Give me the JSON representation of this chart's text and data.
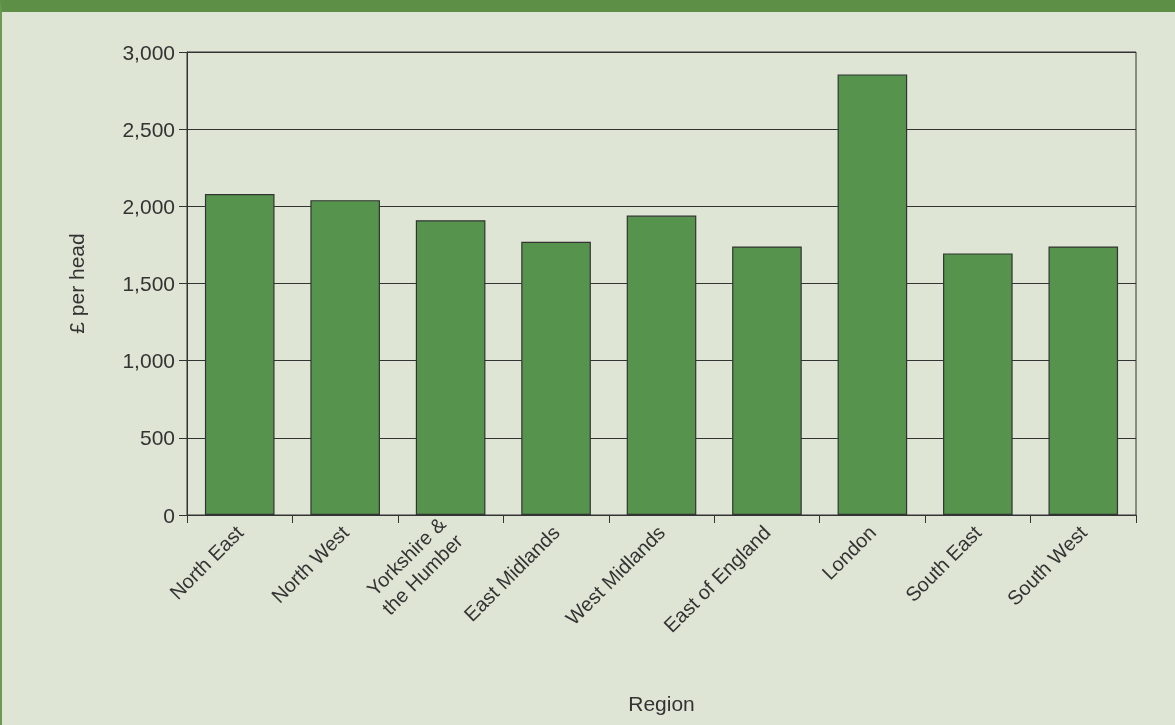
{
  "chart_data": {
    "type": "bar",
    "xlabel": "Region",
    "ylabel": "£ per head",
    "categories": [
      "North East",
      "North West",
      "Yorkshire &\nthe Humber",
      "East Midlands",
      "West Midlands",
      "East of England",
      "London",
      "South East",
      "South West"
    ],
    "values": [
      2080,
      2040,
      1910,
      1770,
      1940,
      1740,
      2855,
      1695,
      1740
    ],
    "color": "#56944e",
    "ylim": [
      0,
      3000
    ],
    "yticks": [
      0,
      {
        "value": 500,
        "label": "500"
      },
      {
        "value": 1000,
        "label": "1,000"
      },
      {
        "value": 1500,
        "label": "1,500"
      },
      {
        "value": 2000,
        "label": "2,000"
      },
      {
        "value": 2500,
        "label": "2,500"
      },
      {
        "value": 3000,
        "label": "3,000"
      }
    ],
    "grid": "y"
  }
}
